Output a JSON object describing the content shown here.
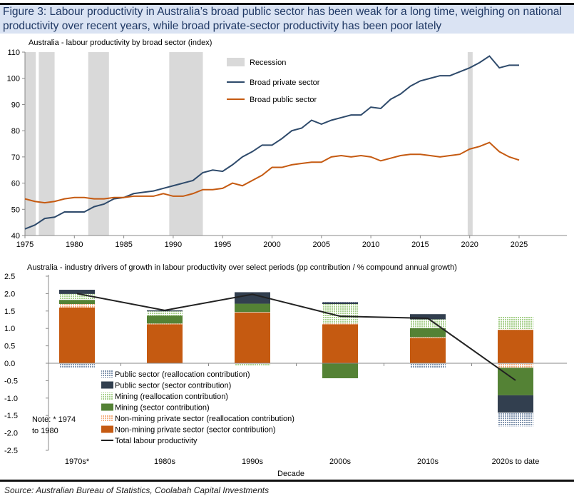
{
  "title": "Figure 3: Labour productivity in Australia’s broad public sector has been weak for a long time, weighing on national productivity over recent years, while broad private-sector productivity has been poor lately",
  "source": "Source: Australian Bureau of Statistics, Coolabah Capital Investments",
  "chart_data": [
    {
      "type": "line",
      "title": "Australia - labour productivity by broad sector (index)",
      "xlim": [
        1975,
        2030
      ],
      "ylim": [
        40,
        110
      ],
      "xticks": [
        1975,
        1980,
        1985,
        1990,
        1995,
        2000,
        2005,
        2010,
        2015,
        2020,
        2025
      ],
      "yticks": [
        40,
        50,
        60,
        70,
        80,
        90,
        100,
        110
      ],
      "recession_label": "Recession",
      "recession_color": "#d9d9d9",
      "recessions": [
        [
          1975,
          1976.1
        ],
        [
          1976.4,
          1978
        ],
        [
          1981.4,
          1983.5
        ],
        [
          1989.6,
          1993
        ],
        [
          2019.8,
          2020.3
        ]
      ],
      "x": [
        1975,
        1976,
        1977,
        1978,
        1979,
        1980,
        1981,
        1982,
        1983,
        1984,
        1985,
        1986,
        1987,
        1988,
        1989,
        1990,
        1991,
        1992,
        1993,
        1994,
        1995,
        1996,
        1997,
        1998,
        1999,
        2000,
        2001,
        2002,
        2003,
        2004,
        2005,
        2006,
        2007,
        2008,
        2009,
        2010,
        2011,
        2012,
        2013,
        2014,
        2015,
        2016,
        2017,
        2018,
        2019,
        2020,
        2021,
        2022,
        2023,
        2024,
        2025
      ],
      "series": [
        {
          "name": "Broad private sector",
          "color": "#2e4a6b",
          "values": [
            42.5,
            44,
            46.5,
            47,
            49,
            49,
            49,
            51,
            52,
            54,
            54.5,
            56,
            56.5,
            57,
            58,
            59,
            60,
            61,
            64,
            65,
            64.5,
            67,
            70,
            72,
            74.5,
            74.5,
            77,
            80,
            81,
            84,
            82.5,
            84,
            85,
            86,
            86,
            89,
            88.5,
            92,
            94,
            97,
            99,
            100,
            101,
            101,
            102.5,
            104,
            106,
            108.5,
            104,
            105,
            105
          ]
        },
        {
          "name": "Broad public sector",
          "color": "#c55a11",
          "values": [
            54,
            53,
            52.5,
            53,
            54,
            54.5,
            54.5,
            54,
            54,
            54.5,
            54.5,
            55,
            55,
            55,
            56,
            55,
            55,
            56,
            57.5,
            57.5,
            58,
            60,
            59,
            61,
            63,
            66,
            66,
            67,
            67.5,
            68,
            68,
            70,
            70.5,
            70,
            70.5,
            70,
            68.5,
            69.5,
            70.5,
            71,
            71,
            70.5,
            70,
            70.5,
            71,
            73,
            74,
            75.5,
            72,
            70,
            68.8
          ]
        }
      ]
    },
    {
      "type": "bar",
      "stacked": true,
      "title": "Australia - industry drivers of growth in labour productivity over select periods (pp contribution / % compound annual growth)",
      "xlabel": "Decade",
      "ylim": [
        -2.5,
        2.5
      ],
      "yticks": [
        "2.5",
        "2.0",
        "1.5",
        "1.0",
        "0.5",
        "0.0",
        "-0.5",
        "-1.0",
        "-1.5",
        "-2.0",
        "-2.5"
      ],
      "categories": [
        "1970s*",
        "1980s",
        "1990s",
        "2000s",
        "2010s",
        "2020s to date"
      ],
      "note": [
        "Note: * 1974",
        "to 1980"
      ],
      "series": [
        {
          "name": "Non-mining private sector (sector contribution)",
          "color": "#c55a11",
          "pattern": false,
          "values": [
            1.6,
            1.12,
            1.46,
            1.12,
            0.73,
            0.96
          ]
        },
        {
          "name": "Non-mining private sector (reallocation contribution)",
          "color": "#f4b183",
          "pattern": true,
          "values": [
            0.1,
            0.02,
            0.01,
            0.02,
            0.02,
            -0.13
          ]
        },
        {
          "name": "Mining (sector contribution)",
          "color": "#548235",
          "pattern": false,
          "values": [
            0.12,
            0.23,
            0.24,
            -0.43,
            0.26,
            -0.79
          ]
        },
        {
          "name": "Mining (reallocation contribution)",
          "color": "#a9d18e",
          "pattern": true,
          "values": [
            0.17,
            0.12,
            -0.08,
            0.56,
            0.25,
            0.38
          ]
        },
        {
          "name": "Public sector (sector contribution)",
          "color": "#323f4f",
          "pattern": false,
          "values": [
            0.12,
            0.03,
            0.33,
            0.05,
            0.15,
            -0.5
          ]
        },
        {
          "name": "Public sector (reallocation contribution)",
          "color": "#8497b0",
          "pattern": true,
          "values": [
            -0.12,
            0,
            0,
            0.03,
            -0.13,
            -0.39
          ]
        }
      ],
      "line": {
        "name": "Total labour productivity",
        "color": "#222222",
        "values": [
          2.0,
          1.52,
          1.98,
          1.35,
          1.29,
          -0.49
        ]
      }
    }
  ]
}
